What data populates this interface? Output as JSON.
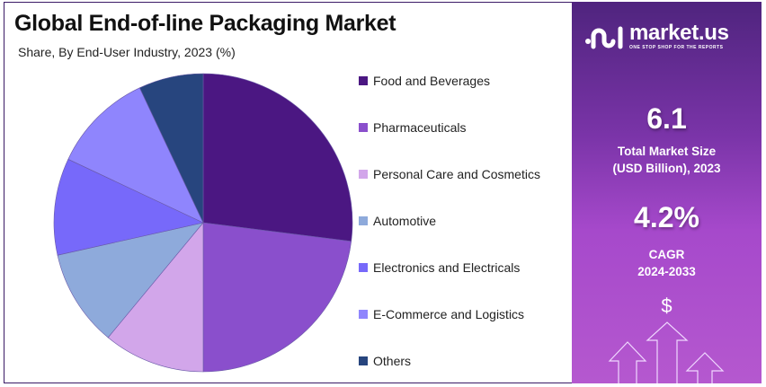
{
  "title": "Global End-of-line Packaging Market",
  "subtitle": "Share, By End-User Industry, 2023 (%)",
  "chart_data": {
    "type": "pie",
    "title": "Global End-of-line Packaging Market",
    "subtitle": "Share, By End-User Industry, 2023 (%)",
    "legend_position": "right",
    "categories": [
      "Food and Beverages",
      "Pharmaceuticals",
      "Personal Care and Cosmetics",
      "Automotive",
      "Electronics and Electricals",
      "E-Commerce and Logistics",
      "Others"
    ],
    "values": [
      27,
      23,
      11,
      10.5,
      10.5,
      11,
      7
    ],
    "colors": [
      "#4b1782",
      "#8a4fcc",
      "#d2a6ea",
      "#8eaadb",
      "#7769fa",
      "#8f85fd",
      "#27457e"
    ]
  },
  "panel": {
    "logo_name": "market.us",
    "logo_tagline": "ONE STOP SHOP FOR THE REPORTS",
    "market_size": "6.1",
    "market_size_label_1": "Total Market Size",
    "market_size_label_2": "(USD Billion), 2023",
    "cagr": "4.2%",
    "cagr_label": "CAGR",
    "cagr_period": "2024-2033",
    "dollar_symbol": "$"
  }
}
